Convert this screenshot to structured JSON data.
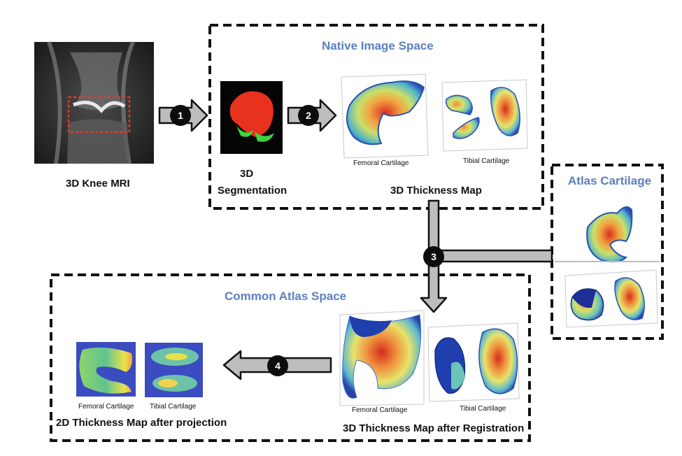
{
  "labels": {
    "knee_mri": "3D Knee MRI",
    "seg_line1": "3D",
    "seg_line2": "Segmentation",
    "thickness_map": "3D Thickness Map",
    "femoral_top": "Femoral Cartilage",
    "tibial_top": "Tibial Cartilage",
    "native_space": "Native Image Space",
    "atlas_cartilage": "Atlas Cartilage",
    "common_space": "Common Atlas Space",
    "femoral_bottom": "Femoral Cartilage",
    "tibial_bottom": "Tibial Cartilage",
    "thickness_after_reg": "3D Thickness Map after Registration",
    "femoral_2d": "Femoral Cartilage",
    "tibial_2d": "Tibial Cartilage",
    "thickness_2d": "2D Thickness Map after projection"
  },
  "steps": [
    "1",
    "2",
    "3",
    "4"
  ],
  "colors": {
    "title_blue": "#5b7fbf",
    "arrow_fill": "#bdbdbd",
    "segmentation_red": "#e8321e",
    "segmentation_green": "#3fd13f",
    "map_2d_bg": "#3b4cc0"
  }
}
